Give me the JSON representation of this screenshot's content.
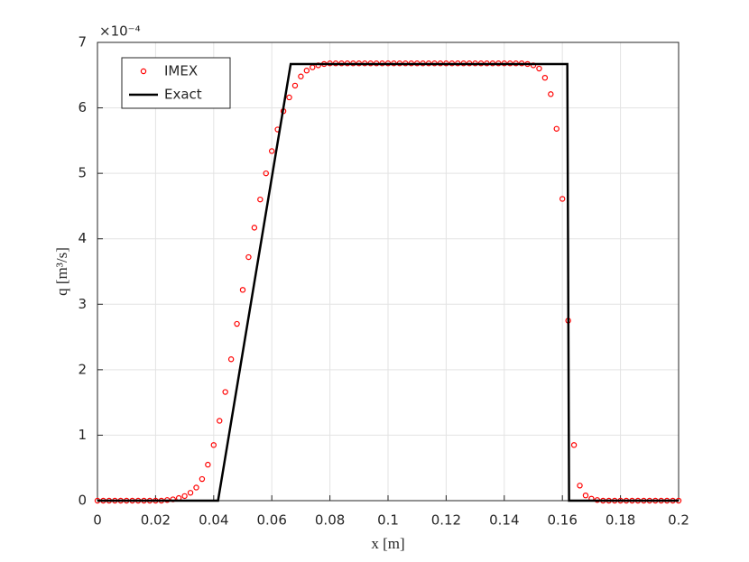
{
  "chart_data": {
    "type": "line",
    "xlabel": "x [m]",
    "ylabel": "q [m³/s]",
    "y_exponent_label": "×10⁻⁴",
    "xlim": [
      0,
      0.2
    ],
    "ylim": [
      0,
      7
    ],
    "xticks": [
      0,
      0.02,
      0.04,
      0.06,
      0.08,
      0.1,
      0.12,
      0.14,
      0.16,
      0.18,
      0.2
    ],
    "yticks": [
      0,
      1,
      2,
      3,
      4,
      5,
      6,
      7
    ],
    "grid": true,
    "legend": "top-left",
    "series": [
      {
        "name": "IMEX",
        "color": "#ff0000",
        "style": "markers",
        "x": [
          0,
          0.002,
          0.004,
          0.006,
          0.008,
          0.01,
          0.012,
          0.014,
          0.016,
          0.018,
          0.02,
          0.022,
          0.024,
          0.026,
          0.028,
          0.03,
          0.032,
          0.034,
          0.036,
          0.038,
          0.04,
          0.042,
          0.044,
          0.046,
          0.048,
          0.05,
          0.052,
          0.054,
          0.056,
          0.058,
          0.06,
          0.062,
          0.064,
          0.066,
          0.068,
          0.07,
          0.072,
          0.074,
          0.076,
          0.078,
          0.08,
          0.082,
          0.084,
          0.086,
          0.088,
          0.09,
          0.092,
          0.094,
          0.096,
          0.098,
          0.1,
          0.102,
          0.104,
          0.106,
          0.108,
          0.11,
          0.112,
          0.114,
          0.116,
          0.118,
          0.12,
          0.122,
          0.124,
          0.126,
          0.128,
          0.13,
          0.132,
          0.134,
          0.136,
          0.138,
          0.14,
          0.142,
          0.144,
          0.146,
          0.148,
          0.15,
          0.152,
          0.154,
          0.156,
          0.158,
          0.16,
          0.162,
          0.164,
          0.166,
          0.168,
          0.17,
          0.172,
          0.174,
          0.176,
          0.178,
          0.18,
          0.182,
          0.184,
          0.186,
          0.188,
          0.19,
          0.192,
          0.194,
          0.196,
          0.198,
          0.2
        ],
        "values": [
          0,
          0,
          0,
          0,
          0,
          0,
          0,
          0,
          0,
          0,
          0,
          0,
          0.01,
          0.02,
          0.04,
          0.07,
          0.12,
          0.2,
          0.33,
          0.55,
          0.85,
          1.22,
          1.66,
          2.16,
          2.7,
          3.22,
          3.72,
          4.17,
          4.6,
          5.0,
          5.34,
          5.67,
          5.95,
          6.16,
          6.34,
          6.48,
          6.57,
          6.62,
          6.65,
          6.67,
          6.68,
          6.68,
          6.68,
          6.68,
          6.68,
          6.68,
          6.68,
          6.68,
          6.68,
          6.68,
          6.68,
          6.68,
          6.68,
          6.68,
          6.68,
          6.68,
          6.68,
          6.68,
          6.68,
          6.68,
          6.68,
          6.68,
          6.68,
          6.68,
          6.68,
          6.68,
          6.68,
          6.68,
          6.68,
          6.68,
          6.68,
          6.68,
          6.68,
          6.68,
          6.67,
          6.65,
          6.6,
          6.46,
          6.21,
          5.68,
          4.61,
          2.75,
          0.85,
          0.23,
          0.08,
          0.03,
          0.01,
          0,
          0,
          0,
          0,
          0,
          0,
          0,
          0,
          0,
          0,
          0,
          0,
          0,
          0
        ]
      },
      {
        "name": "Exact",
        "color": "#000000",
        "style": "line",
        "x": [
          0,
          0.0415,
          0.0665,
          0.1617,
          0.1623,
          0.2
        ],
        "values": [
          0,
          0,
          6.67,
          6.67,
          0,
          0
        ]
      }
    ]
  }
}
